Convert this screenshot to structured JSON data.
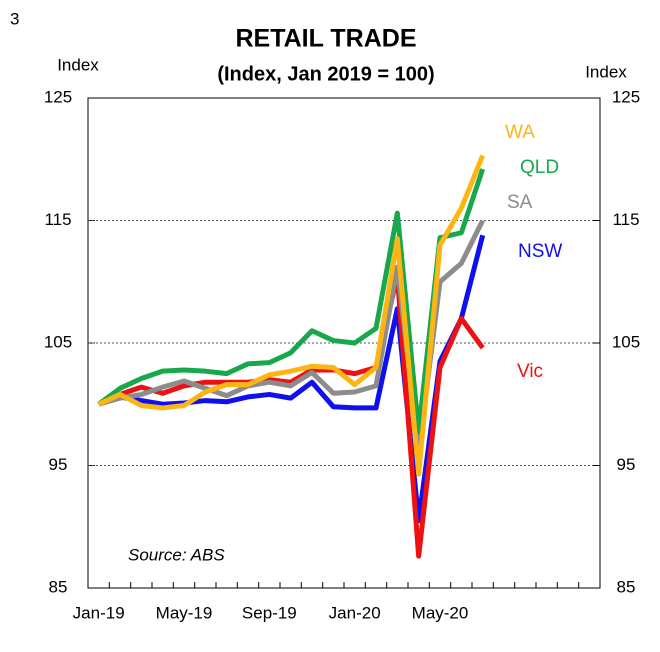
{
  "page_number": "3",
  "chart_data": {
    "type": "line",
    "title": "RETAIL TRADE",
    "subtitle": "(Index, Jan 2019 = 100)",
    "ylabel": "Index",
    "y2label": "Index",
    "source": "Source: ABS",
    "categories": [
      "Jan-19",
      null,
      null,
      null,
      "May-19",
      null,
      null,
      null,
      "Sep-19",
      null,
      null,
      null,
      "Jan-20",
      null,
      null,
      null,
      "May-20",
      null,
      null,
      null,
      null,
      null,
      null,
      null
    ],
    "ylim": [
      85,
      125
    ],
    "yticks": [
      85,
      95,
      105,
      115,
      125
    ],
    "y2lim": [
      85,
      125
    ],
    "y2ticks": [
      85,
      95,
      105,
      115,
      125
    ],
    "grid": true,
    "series": [
      {
        "name": "NSW",
        "color": "#1010ee",
        "values": [
          100,
          100.6,
          100.3,
          100.0,
          100.1,
          100.3,
          100.2,
          100.6,
          100.8,
          100.5,
          101.8,
          99.8,
          99.7,
          99.7,
          107.8,
          90.5,
          103.5,
          107,
          113.8,
          null,
          null,
          null,
          null,
          null
        ]
      },
      {
        "name": "Vic",
        "color": "#ee1111",
        "values": [
          100,
          100.8,
          101.4,
          100.9,
          101.5,
          101.8,
          101.8,
          101.8,
          102,
          101.8,
          102.8,
          102.8,
          102.5,
          103,
          110.5,
          87.6,
          103,
          107,
          104.6,
          null,
          null,
          null,
          null,
          null
        ]
      },
      {
        "name": "SA",
        "color": "#8c8c8c",
        "values": [
          100,
          100.5,
          100.8,
          101.4,
          101.9,
          101.3,
          100.7,
          101.5,
          101.8,
          101.5,
          102.6,
          100.9,
          101,
          101.5,
          111.2,
          96,
          110,
          111.5,
          115,
          null,
          null,
          null,
          null,
          null
        ]
      },
      {
        "name": "QLD",
        "color": "#16a84a",
        "values": [
          100,
          101.3,
          102.1,
          102.7,
          102.8,
          102.7,
          102.5,
          103.3,
          103.4,
          104.2,
          106,
          105.2,
          105,
          106.2,
          115.6,
          97.8,
          113.6,
          114.0,
          119.2,
          null,
          null,
          null,
          null,
          null
        ]
      },
      {
        "name": "WA",
        "color": "#fbb616",
        "values": [
          100,
          100.8,
          99.9,
          99.7,
          99.9,
          101,
          101.6,
          101.6,
          102.4,
          102.7,
          103.1,
          103,
          101.6,
          103,
          113.5,
          94.3,
          113,
          116,
          120.3,
          null,
          null,
          null,
          null,
          null
        ]
      }
    ]
  }
}
